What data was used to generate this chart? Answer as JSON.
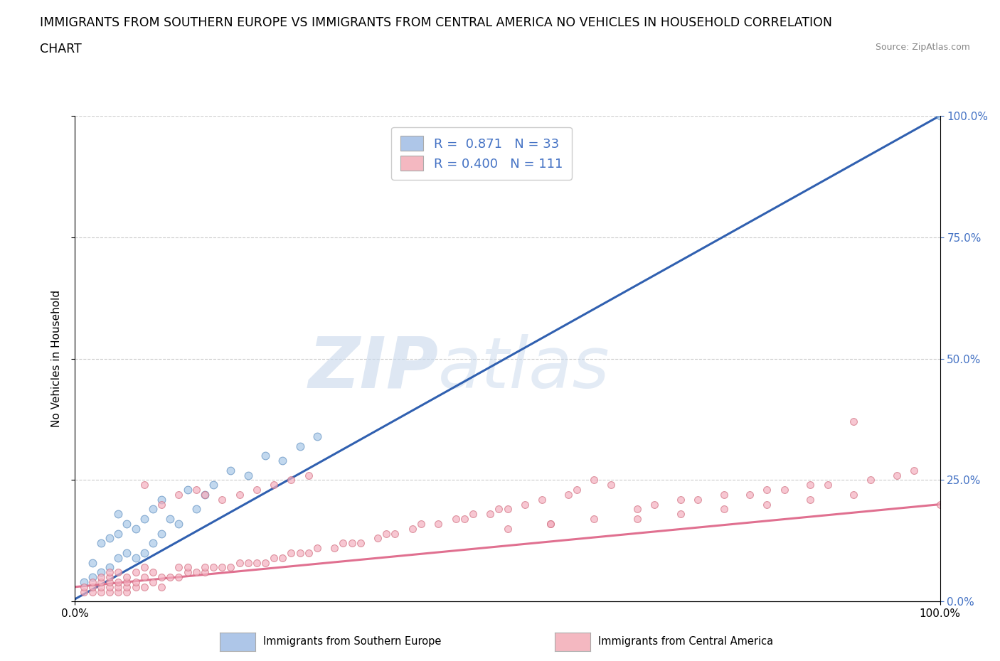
{
  "title_line1": "IMMIGRANTS FROM SOUTHERN EUROPE VS IMMIGRANTS FROM CENTRAL AMERICA NO VEHICLES IN HOUSEHOLD CORRELATION",
  "title_line2": "CHART",
  "source_text": "Source: ZipAtlas.com",
  "watermark_zip": "ZIP",
  "watermark_atlas": "atlas",
  "xlabel": "",
  "ylabel": "No Vehicles in Household",
  "xlim": [
    0.0,
    1.0
  ],
  "ylim": [
    0.0,
    1.0
  ],
  "legend_color1": "#aec6e8",
  "legend_color2": "#f4b8c1",
  "scatter_blue": {
    "x": [
      0.01,
      0.02,
      0.02,
      0.03,
      0.03,
      0.04,
      0.04,
      0.05,
      0.05,
      0.05,
      0.06,
      0.06,
      0.07,
      0.07,
      0.08,
      0.08,
      0.09,
      0.09,
      0.1,
      0.1,
      0.11,
      0.12,
      0.13,
      0.14,
      0.15,
      0.16,
      0.18,
      0.2,
      0.22,
      0.24,
      0.26,
      0.28,
      1.0
    ],
    "y": [
      0.04,
      0.05,
      0.08,
      0.06,
      0.12,
      0.07,
      0.13,
      0.09,
      0.14,
      0.18,
      0.1,
      0.16,
      0.09,
      0.15,
      0.1,
      0.17,
      0.12,
      0.19,
      0.14,
      0.21,
      0.17,
      0.16,
      0.23,
      0.19,
      0.22,
      0.24,
      0.27,
      0.26,
      0.3,
      0.29,
      0.32,
      0.34,
      1.0
    ],
    "color": "#a8c8e8",
    "edge_color": "#6090c0",
    "size": 60,
    "alpha": 0.7
  },
  "scatter_pink": {
    "x": [
      0.01,
      0.01,
      0.02,
      0.02,
      0.02,
      0.03,
      0.03,
      0.03,
      0.03,
      0.04,
      0.04,
      0.04,
      0.04,
      0.04,
      0.05,
      0.05,
      0.05,
      0.05,
      0.06,
      0.06,
      0.06,
      0.06,
      0.07,
      0.07,
      0.07,
      0.08,
      0.08,
      0.08,
      0.09,
      0.09,
      0.1,
      0.1,
      0.11,
      0.12,
      0.12,
      0.13,
      0.13,
      0.14,
      0.15,
      0.15,
      0.16,
      0.17,
      0.18,
      0.19,
      0.2,
      0.21,
      0.22,
      0.23,
      0.24,
      0.25,
      0.26,
      0.27,
      0.28,
      0.3,
      0.31,
      0.32,
      0.33,
      0.35,
      0.36,
      0.37,
      0.39,
      0.4,
      0.42,
      0.44,
      0.45,
      0.46,
      0.48,
      0.49,
      0.5,
      0.52,
      0.54,
      0.55,
      0.57,
      0.58,
      0.6,
      0.62,
      0.65,
      0.67,
      0.7,
      0.72,
      0.75,
      0.78,
      0.8,
      0.82,
      0.85,
      0.87,
      0.9,
      0.92,
      0.95,
      0.97,
      1.0,
      0.5,
      0.55,
      0.6,
      0.65,
      0.7,
      0.75,
      0.8,
      0.85,
      0.9,
      0.08,
      0.1,
      0.12,
      0.14,
      0.15,
      0.17,
      0.19,
      0.21,
      0.23,
      0.25,
      0.27
    ],
    "y": [
      0.02,
      0.03,
      0.02,
      0.03,
      0.04,
      0.02,
      0.03,
      0.04,
      0.05,
      0.02,
      0.03,
      0.04,
      0.05,
      0.06,
      0.02,
      0.03,
      0.04,
      0.06,
      0.02,
      0.03,
      0.04,
      0.05,
      0.03,
      0.04,
      0.06,
      0.03,
      0.05,
      0.07,
      0.04,
      0.06,
      0.03,
      0.05,
      0.05,
      0.05,
      0.07,
      0.06,
      0.07,
      0.06,
      0.06,
      0.07,
      0.07,
      0.07,
      0.07,
      0.08,
      0.08,
      0.08,
      0.08,
      0.09,
      0.09,
      0.1,
      0.1,
      0.1,
      0.11,
      0.11,
      0.12,
      0.12,
      0.12,
      0.13,
      0.14,
      0.14,
      0.15,
      0.16,
      0.16,
      0.17,
      0.17,
      0.18,
      0.18,
      0.19,
      0.19,
      0.2,
      0.21,
      0.16,
      0.22,
      0.23,
      0.17,
      0.24,
      0.19,
      0.2,
      0.21,
      0.21,
      0.22,
      0.22,
      0.23,
      0.23,
      0.24,
      0.24,
      0.37,
      0.25,
      0.26,
      0.27,
      0.2,
      0.15,
      0.16,
      0.25,
      0.17,
      0.18,
      0.19,
      0.2,
      0.21,
      0.22,
      0.24,
      0.2,
      0.22,
      0.23,
      0.22,
      0.21,
      0.22,
      0.23,
      0.24,
      0.25,
      0.26
    ],
    "color": "#f4b0c0",
    "edge_color": "#d07080",
    "size": 50,
    "alpha": 0.7
  },
  "line_blue": {
    "x": [
      0.0,
      1.0
    ],
    "y": [
      0.005,
      1.0
    ],
    "color": "#3060b0",
    "linewidth": 2.2
  },
  "line_pink": {
    "x": [
      0.0,
      1.0
    ],
    "y": [
      0.03,
      0.2
    ],
    "color": "#e07090",
    "linewidth": 2.2
  },
  "grid_color": "#cccccc",
  "background_color": "#ffffff",
  "title_fontsize": 12.5,
  "label_fontsize": 11,
  "tick_fontsize": 11,
  "watermark_color": "#c8d8ec",
  "watermark_fontsize": 72,
  "right_tick_color": "#4472c4"
}
